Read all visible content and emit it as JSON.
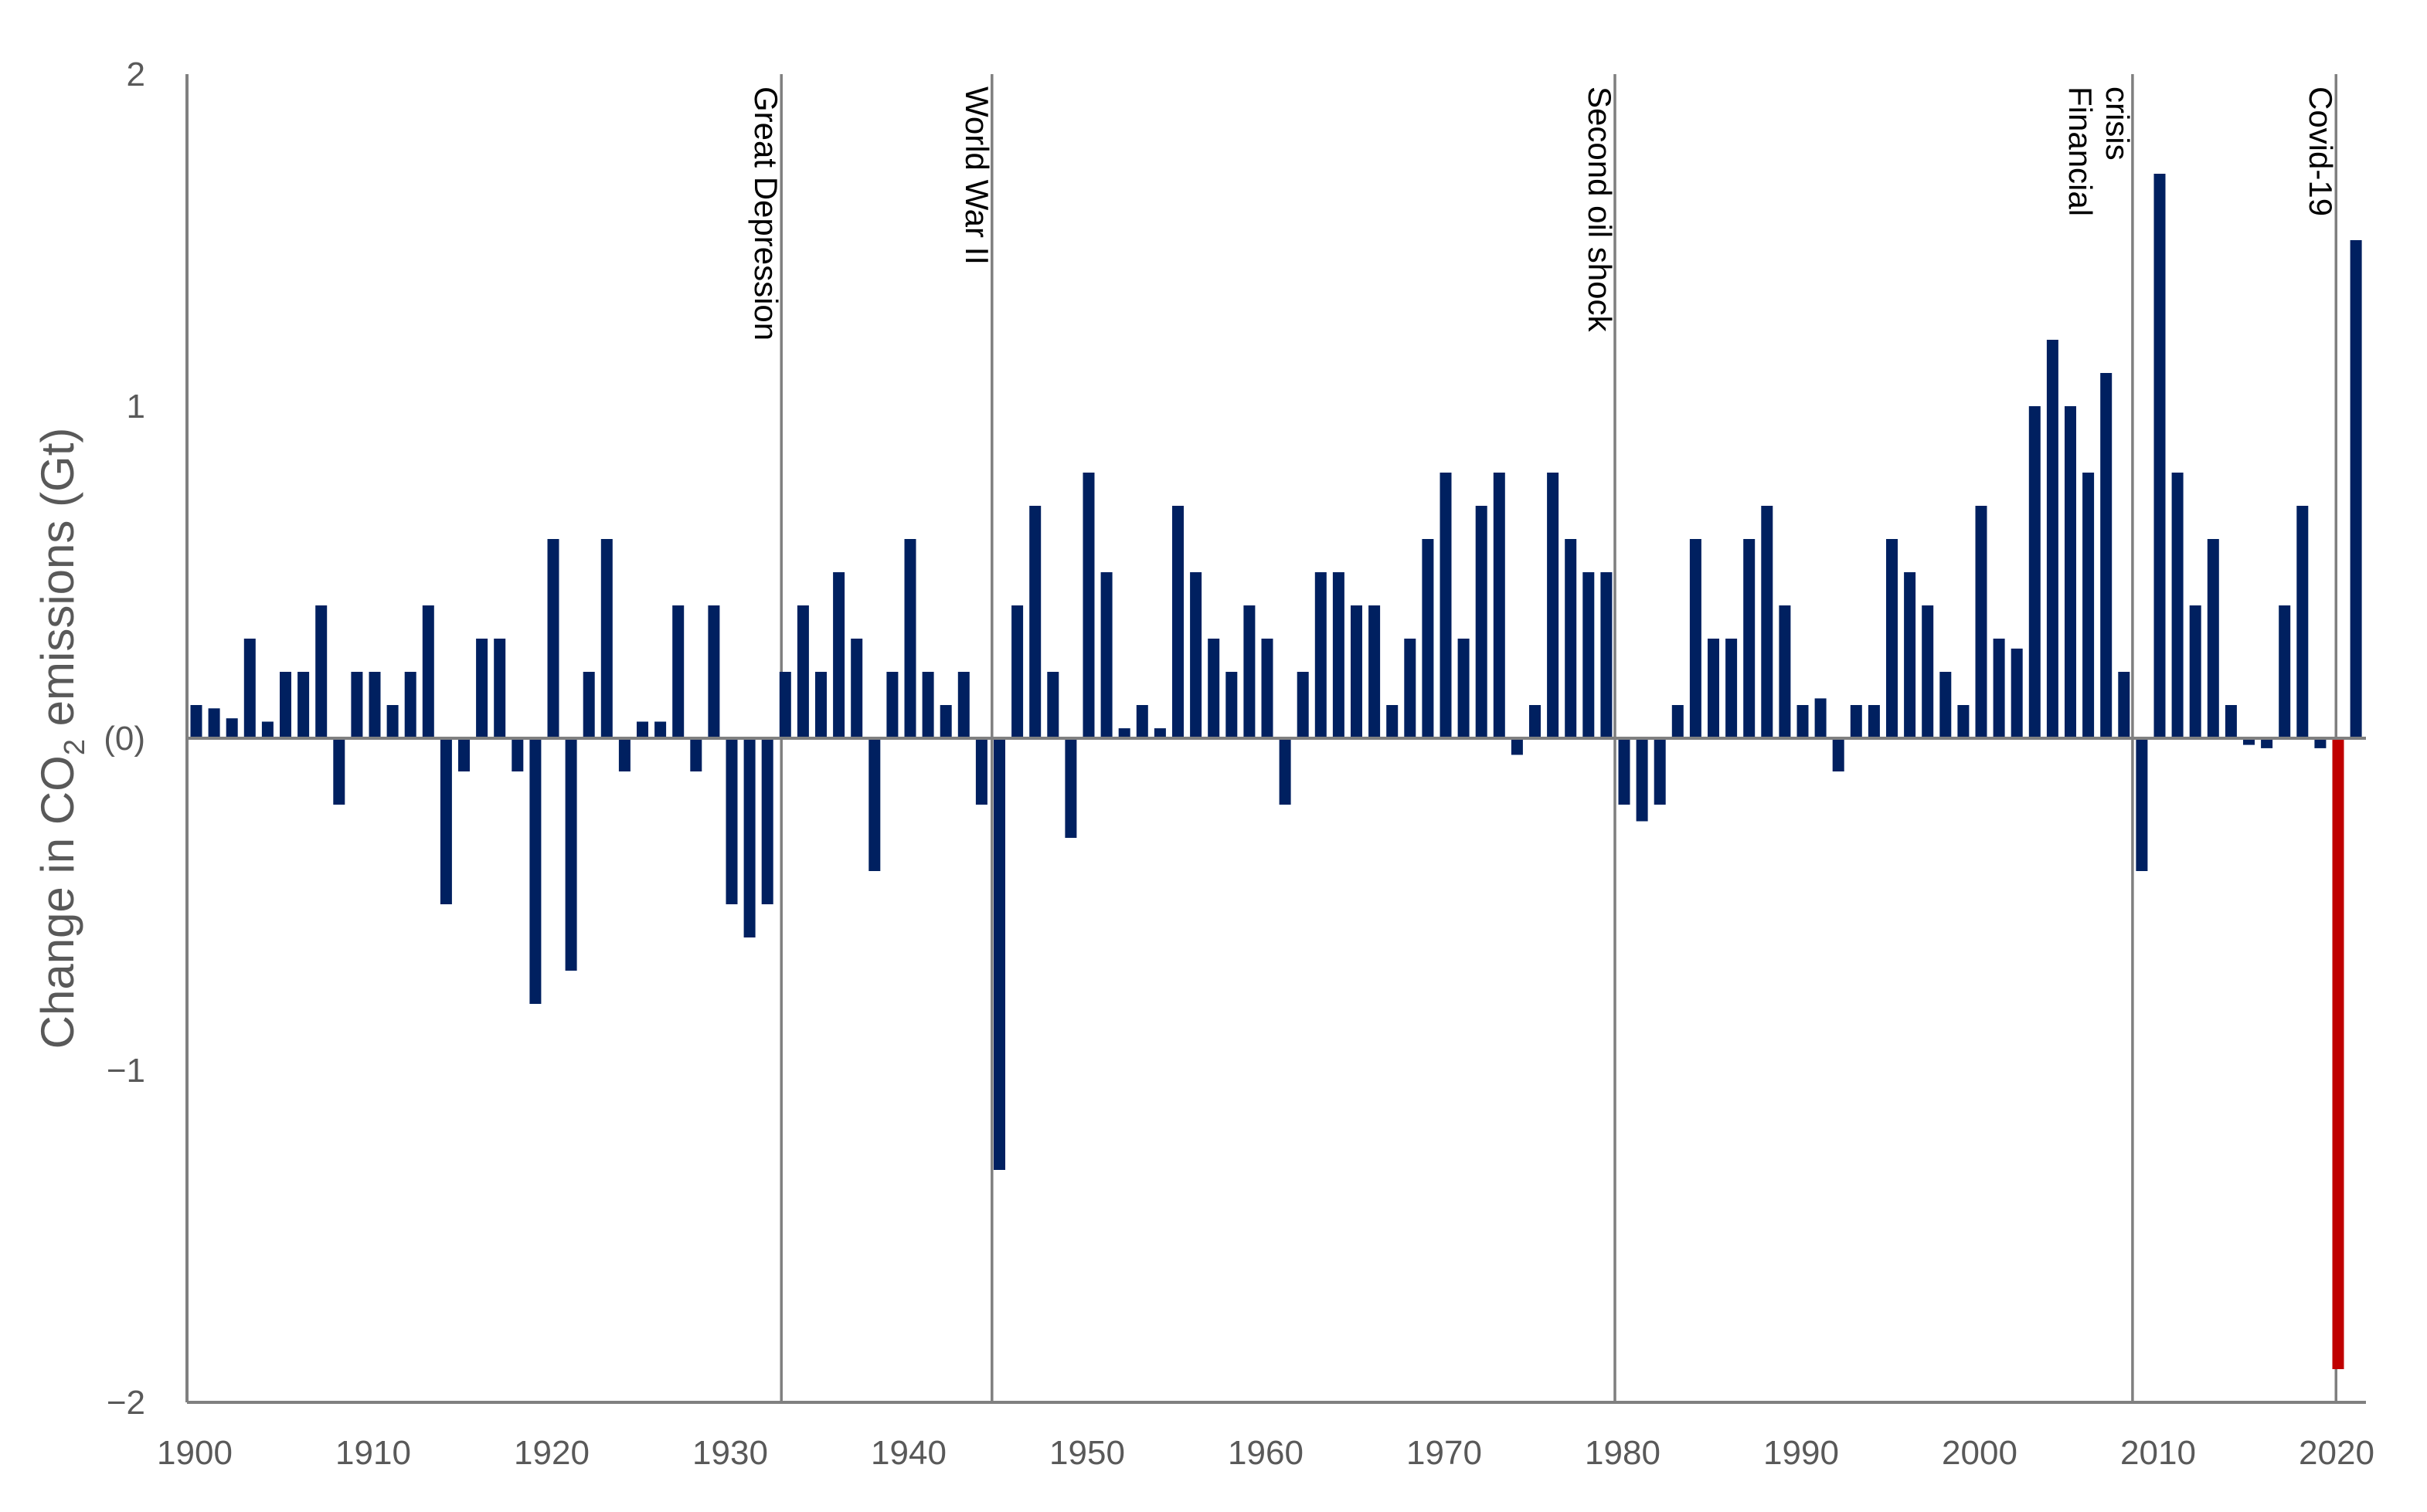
{
  "chart_data": {
    "type": "bar",
    "title": "",
    "ylabel_parts": {
      "before": "Change in CO",
      "subscript": "2",
      "after": " emissions (Gt)"
    },
    "xlabel": "",
    "ylim": [
      -2,
      2
    ],
    "xlim": [
      1900,
      2022
    ],
    "y_ticks": [
      {
        "value": 2,
        "label": "2"
      },
      {
        "value": 1,
        "label": "1"
      },
      {
        "value": 0,
        "label": "(0)"
      },
      {
        "value": -1,
        "label": "−1"
      },
      {
        "value": -2,
        "label": "−2"
      }
    ],
    "x_ticks": [
      {
        "value": 1900,
        "label": "1900"
      },
      {
        "value": 1910,
        "label": "1910"
      },
      {
        "value": 1920,
        "label": "1920"
      },
      {
        "value": 1930,
        "label": "1930"
      },
      {
        "value": 1940,
        "label": "1940"
      },
      {
        "value": 1950,
        "label": "1950"
      },
      {
        "value": 1960,
        "label": "1960"
      },
      {
        "value": 1970,
        "label": "1970"
      },
      {
        "value": 1980,
        "label": "1980"
      },
      {
        "value": 1990,
        "label": "1990"
      },
      {
        "value": 2000,
        "label": "2000"
      },
      {
        "value": 2010,
        "label": "2010"
      },
      {
        "value": 2020,
        "label": "2020"
      }
    ],
    "events": [
      {
        "label_lines": [
          "Great Depression"
        ],
        "year": 1933.3
      },
      {
        "label_lines": [
          "World War II"
        ],
        "year": 1945.1
      },
      {
        "label_lines": [
          "Second oil shock"
        ],
        "year": 1980
      },
      {
        "label_lines": [
          "Financial",
          "crisis"
        ],
        "year": 2009
      },
      {
        "label_lines": [
          "Covid-19"
        ],
        "year": 2020.4
      }
    ],
    "colors": {
      "bar": "#002060",
      "highlight": "#c00000",
      "axis": "#808080"
    },
    "highlight_year": 2020,
    "series": [
      {
        "name": "Change in CO2 emissions",
        "years": [
          1900,
          1901,
          1902,
          1903,
          1904,
          1905,
          1906,
          1907,
          1908,
          1909,
          1910,
          1911,
          1912,
          1913,
          1914,
          1915,
          1916,
          1917,
          1918,
          1919,
          1920,
          1921,
          1922,
          1923,
          1924,
          1925,
          1926,
          1927,
          1928,
          1929,
          1930,
          1931,
          1932,
          1933,
          1934,
          1935,
          1936,
          1937,
          1938,
          1939,
          1940,
          1941,
          1942,
          1943,
          1944,
          1945,
          1946,
          1947,
          1948,
          1949,
          1950,
          1951,
          1952,
          1953,
          1954,
          1955,
          1956,
          1957,
          1958,
          1959,
          1960,
          1961,
          1962,
          1963,
          1964,
          1965,
          1966,
          1967,
          1968,
          1969,
          1970,
          1971,
          1972,
          1973,
          1974,
          1975,
          1976,
          1977,
          1978,
          1979,
          1980,
          1981,
          1982,
          1983,
          1984,
          1985,
          1986,
          1987,
          1988,
          1989,
          1990,
          1991,
          1992,
          1993,
          1994,
          1995,
          1996,
          1997,
          1998,
          1999,
          2000,
          2001,
          2002,
          2003,
          2004,
          2005,
          2006,
          2007,
          2008,
          2009,
          2010,
          2011,
          2012,
          2013,
          2014,
          2015,
          2016,
          2017,
          2018,
          2019,
          2020,
          2021
        ],
        "values": [
          0.1,
          0.09,
          0.06,
          0.3,
          0.05,
          0.2,
          0.2,
          0.4,
          -0.2,
          0.2,
          0.2,
          0.1,
          0.2,
          0.4,
          -0.5,
          -0.1,
          0.3,
          0.3,
          -0.1,
          -0.8,
          0.6,
          -0.7,
          0.2,
          0.6,
          -0.1,
          0.05,
          0.05,
          0.4,
          -0.1,
          0.4,
          -0.5,
          -0.6,
          -0.5,
          0.2,
          0.4,
          0.2,
          0.5,
          0.3,
          -0.4,
          0.2,
          0.6,
          0.2,
          0.1,
          0.2,
          -0.2,
          -1.3,
          0.4,
          0.7,
          0.2,
          -0.3,
          0.8,
          0.5,
          0.03,
          0.1,
          0.03,
          0.7,
          0.5,
          0.3,
          0.2,
          0.4,
          0.3,
          -0.2,
          0.2,
          0.5,
          0.5,
          0.4,
          0.4,
          0.1,
          0.3,
          0.6,
          0.8,
          0.3,
          0.7,
          0.8,
          -0.05,
          0.1,
          0.8,
          0.6,
          0.5,
          0.5,
          -0.2,
          -0.25,
          -0.2,
          0.1,
          0.6,
          0.3,
          0.3,
          0.6,
          0.7,
          0.4,
          0.1,
          0.12,
          -0.1,
          0.1,
          0.1,
          0.6,
          0.5,
          0.4,
          0.2,
          0.1,
          0.7,
          0.3,
          0.27,
          1.0,
          1.2,
          1.0,
          0.8,
          1.1,
          0.2,
          -0.4,
          1.7,
          0.8,
          0.4,
          0.6,
          0.1,
          -0.02,
          -0.03,
          0.4,
          0.7,
          -0.03,
          -1.9,
          1.5
        ]
      }
    ]
  }
}
